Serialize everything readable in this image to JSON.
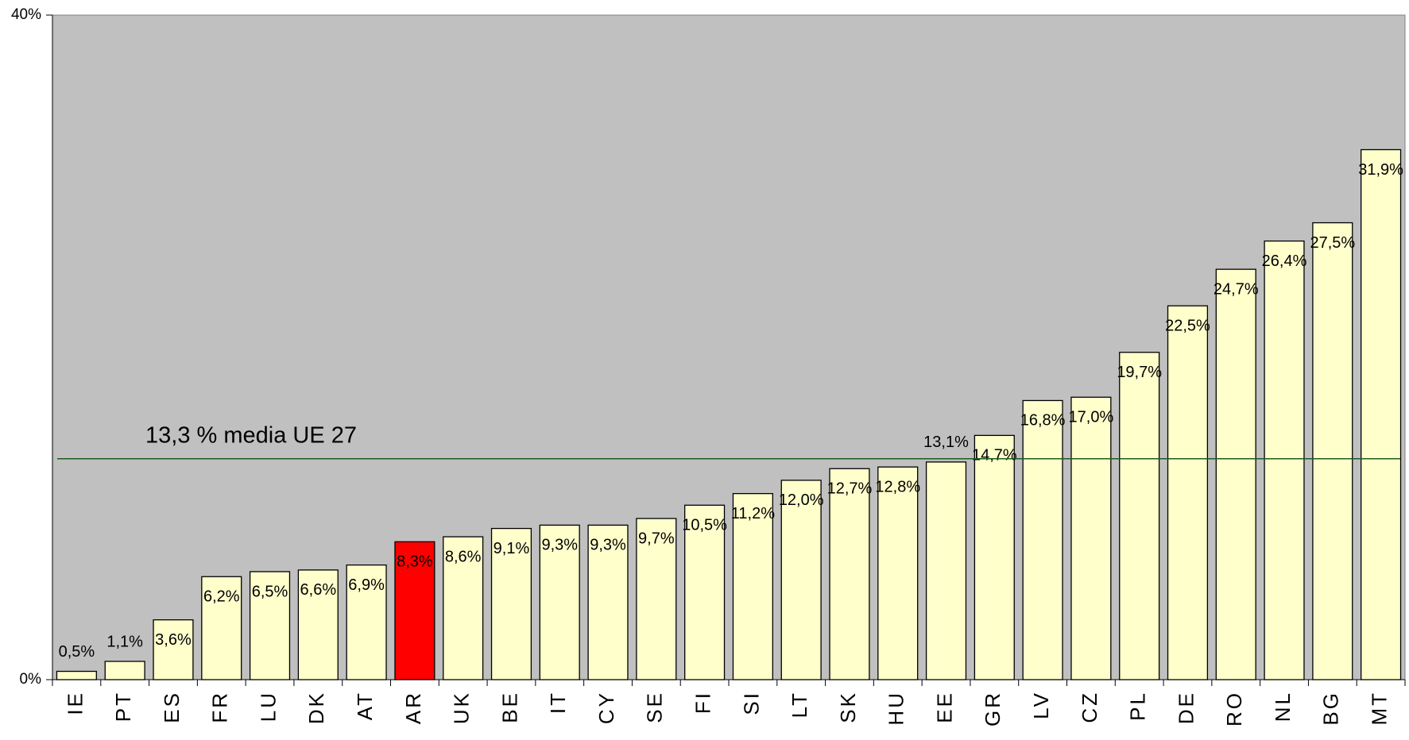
{
  "chart_data": {
    "type": "bar",
    "categories": [
      "IE",
      "PT",
      "ES",
      "FR",
      "LU",
      "DK",
      "AT",
      "AR",
      "UK",
      "BE",
      "IT",
      "CY",
      "SE",
      "FI",
      "SI",
      "LT",
      "SK",
      "HU",
      "EE",
      "GR",
      "LV",
      "CZ",
      "PL",
      "DE",
      "RO",
      "NL",
      "BG",
      "MT"
    ],
    "values": [
      0.5,
      1.1,
      3.6,
      6.2,
      6.5,
      6.6,
      6.9,
      8.3,
      8.6,
      9.1,
      9.3,
      9.3,
      9.7,
      10.5,
      11.2,
      12.0,
      12.7,
      12.8,
      13.1,
      14.7,
      16.8,
      17.0,
      19.7,
      22.5,
      24.7,
      26.4,
      27.5,
      31.9
    ],
    "value_labels": [
      "0,5%",
      "1,1%",
      "3,6%",
      "6,2%",
      "6,5%",
      "6,6%",
      "6,9%",
      "8,3%",
      "8,6%",
      "9,1%",
      "9,3%",
      "9,3%",
      "9,7%",
      "10,5%",
      "11,2%",
      "12,0%",
      "12,7%",
      "12,8%",
      "13,1%",
      "14,7%",
      "16,8%",
      "17,0%",
      "19,7%",
      "22,5%",
      "24,7%",
      "26,4%",
      "27,5%",
      "31,9%"
    ],
    "colors": [
      "#ffffcc",
      "#ffffcc",
      "#ffffcc",
      "#ffffcc",
      "#ffffcc",
      "#ffffcc",
      "#ffffcc",
      "#ff0000",
      "#ffffcc",
      "#ffffcc",
      "#ffffcc",
      "#ffffcc",
      "#ffffcc",
      "#ffffcc",
      "#ffffcc",
      "#ffffcc",
      "#ffffcc",
      "#ffffcc",
      "#ffffcc",
      "#ffffcc",
      "#ffffcc",
      "#ffffcc",
      "#ffffcc",
      "#ffffcc",
      "#ffffcc",
      "#ffffcc",
      "#ffffcc",
      "#ffffcc"
    ],
    "ylim": [
      0,
      40
    ],
    "yticks": [
      {
        "value": 0,
        "label": "0%"
      },
      {
        "value": 40,
        "label": "40%"
      }
    ],
    "reference_line": {
      "value": 13.3,
      "label": "13,3 % media UE 27",
      "color": "#1e5a1e"
    },
    "plot_background": "#c0c0c0"
  }
}
